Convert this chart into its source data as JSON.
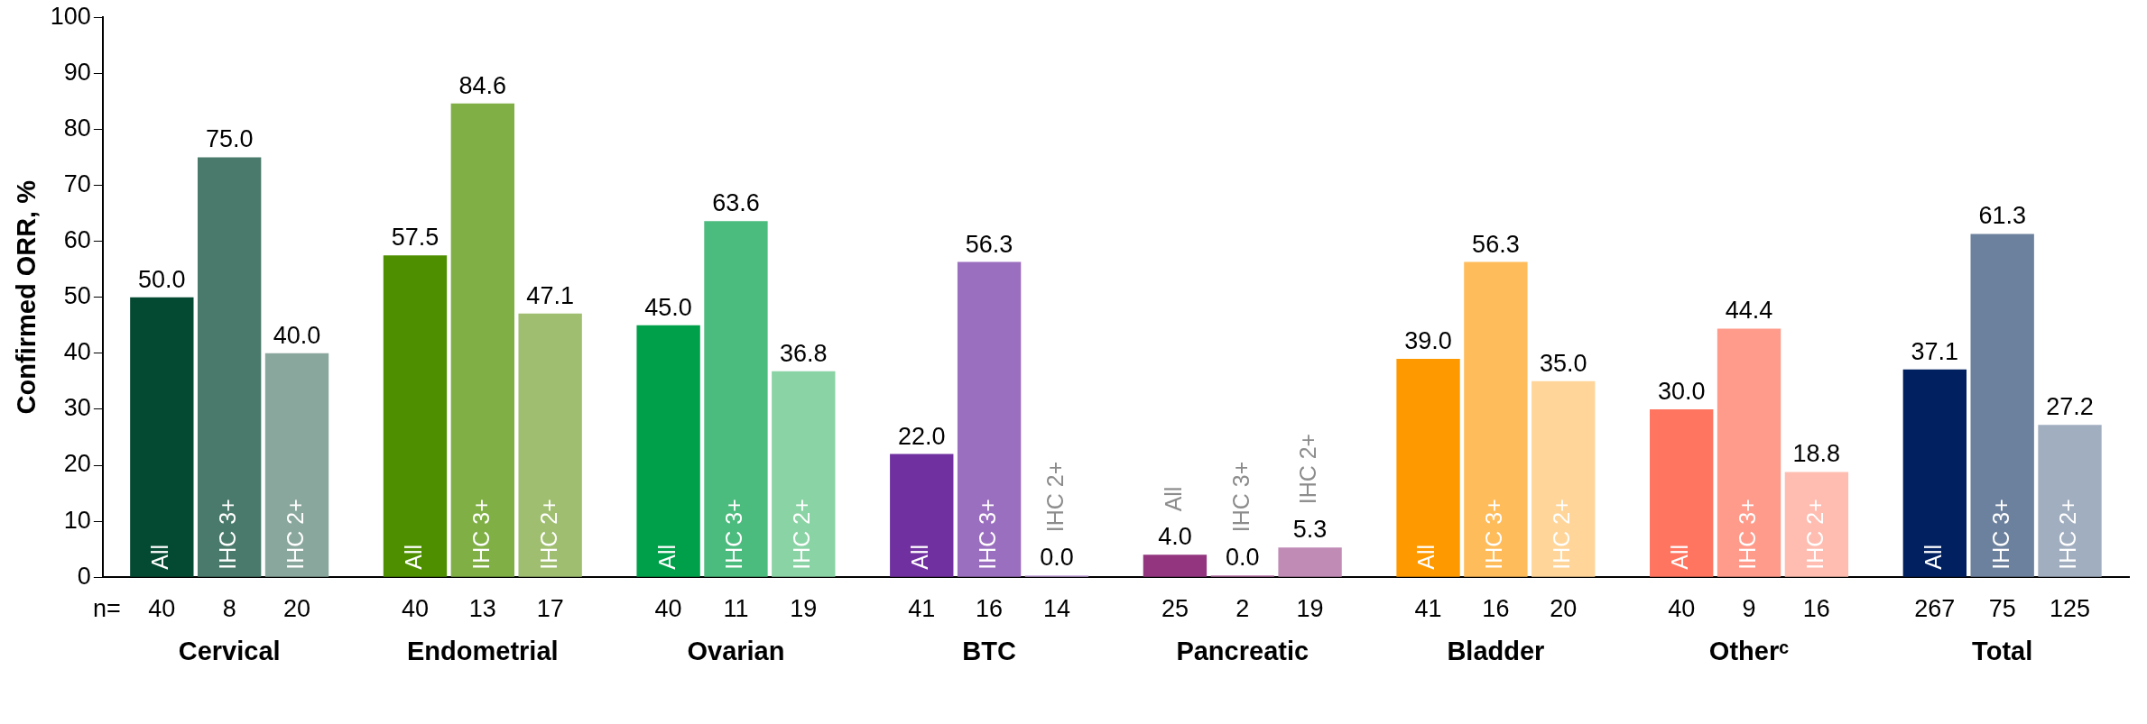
{
  "chart_data": {
    "type": "bar",
    "ylabel": "Confirmed ORR, %",
    "categories": [
      "Cervical",
      "Endometrial",
      "Ovarian",
      "BTC",
      "Pancreatic",
      "Bladder",
      "Otherᶜ",
      "Total"
    ],
    "series": [
      {
        "name": "All",
        "colors": [
          "#044a33",
          "#4e8f00",
          "#00a04a",
          "#7030a0",
          "#93367f",
          "#ff9900",
          "#ff7560",
          "#002060"
        ],
        "values": [
          50.0,
          57.5,
          45.0,
          22.0,
          4.0,
          39.0,
          30.0,
          37.1
        ],
        "value_labels": [
          "50.0",
          "57.5",
          "45.0",
          "22.0",
          "4.0",
          "39.0",
          "30.0",
          "37.1"
        ]
      },
      {
        "name": "IHC 3+",
        "colors": [
          "#4a7a6b",
          "#7faf45",
          "#4cbb7e",
          "#9b6fbf",
          "#b36fa5",
          "#ffbc5a",
          "#ff9b8b",
          "#6c819d"
        ],
        "values": [
          75.0,
          84.6,
          63.6,
          56.3,
          0.0,
          56.3,
          44.4,
          61.3
        ],
        "value_labels": [
          "75.0",
          "84.6",
          "63.6",
          "56.3",
          "0.0",
          "56.3",
          "44.4",
          "61.3"
        ]
      },
      {
        "name": "IHC 2+",
        "colors": [
          "#8aa79e",
          "#9fbe6f",
          "#8ad3a4",
          "#c0a0d8",
          "#c08bb5",
          "#ffd599",
          "#ffbdb1",
          "#a1aec0"
        ],
        "values": [
          40.0,
          47.1,
          36.8,
          0.0,
          5.3,
          35.0,
          18.8,
          27.2
        ],
        "value_labels": [
          "40.0",
          "47.1",
          "36.8",
          "0.0",
          "5.3",
          "35.0",
          "18.8",
          "27.2"
        ]
      }
    ],
    "annotations": [
      "n=",
      "40",
      "8",
      "20",
      "40",
      "13",
      "17",
      "40",
      "11",
      "19",
      "41",
      "16",
      "14",
      "25",
      "2",
      "19",
      "41",
      "16",
      "20",
      "40",
      "9",
      "16",
      "267",
      "75",
      "125"
    ],
    "ylim": [
      0,
      100
    ],
    "yticks": [
      0,
      10,
      20,
      30,
      40,
      50,
      60,
      70,
      80,
      90,
      100
    ],
    "grid": false,
    "legend": false
  }
}
